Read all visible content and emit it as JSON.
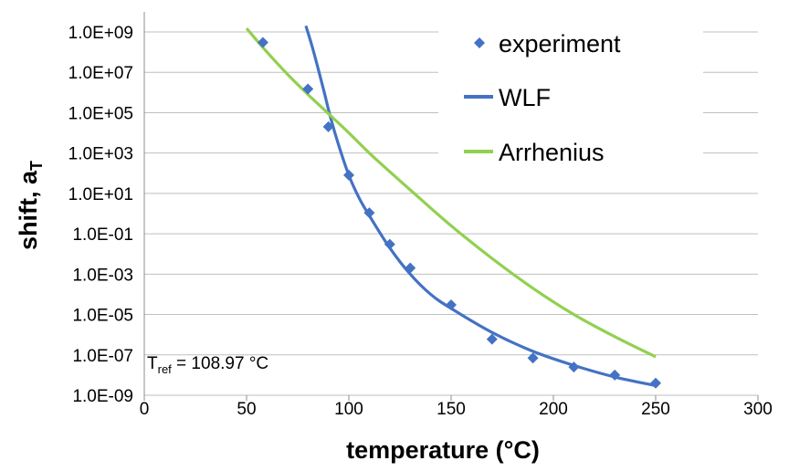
{
  "chart_data": {
    "type": "scatter",
    "title": "",
    "xlabel": "temperature (°C)",
    "ylabel": "shift, a",
    "ylabel_subscript": "T",
    "x_range": [
      0,
      300
    ],
    "x_ticks": [
      0,
      50,
      100,
      150,
      200,
      250,
      300
    ],
    "x_tick_labels": [
      "0",
      "50",
      "100",
      "150",
      "200",
      "250",
      "300"
    ],
    "y_scale": "log",
    "y_range": [
      1e-09,
      1000000000.0
    ],
    "y_ticks": [
      1e-09,
      1e-07,
      1e-05,
      0.001,
      0.1,
      10.0,
      1000.0,
      100000.0,
      10000000.0,
      1000000000.0
    ],
    "y_tick_labels": [
      "1.0E-09",
      "1.0E-07",
      "1.0E-05",
      "1.0E-03",
      "1.0E-01",
      "1.0E+01",
      "1.0E+03",
      "1.0E+05",
      "1.0E+07",
      "1.0E+09"
    ],
    "grid": {
      "horizontal": true,
      "vertical": false
    },
    "legend_position": "top-right",
    "annotation": {
      "prefix": "T",
      "subscript": "ref",
      "text": " = 108.97 °C"
    },
    "series": [
      {
        "name": "experiment",
        "kind": "markers",
        "color": "#4472C4",
        "x": [
          58,
          80,
          90,
          100,
          110,
          120,
          130,
          150,
          170,
          190,
          210,
          230,
          250
        ],
        "y": [
          300000000.0,
          1500000.0,
          20000.0,
          80,
          1.1,
          0.03,
          0.002,
          3e-05,
          6e-07,
          7e-08,
          2.5e-08,
          1e-08,
          4e-09
        ]
      },
      {
        "name": "WLF",
        "kind": "line",
        "color": "#4472C4",
        "x": [
          79,
          82,
          85,
          88,
          91,
          95,
          100,
          105,
          110,
          120,
          130,
          140,
          150,
          170,
          190,
          210,
          230,
          250
        ],
        "y": [
          2000000000.0,
          200000000.0,
          15000000.0,
          1000000.0,
          60000.0,
          2500.0,
          80,
          6,
          0.8,
          0.02,
          0.001,
          0.0001,
          2e-05,
          1.3e-06,
          1.5e-07,
          3e-08,
          8e-09,
          3e-09
        ]
      },
      {
        "name": "Arrhenius",
        "kind": "line",
        "color": "#92D050",
        "x": [
          50,
          60,
          70,
          80,
          90,
          100,
          110,
          120,
          130,
          150,
          170,
          190,
          210,
          230,
          250
        ],
        "y": [
          1500000000.0,
          100000000.0,
          8000000.0,
          800000.0,
          90000.0,
          10000.0,
          1000.0,
          120,
          15,
          0.25,
          0.006,
          0.0002,
          1e-05,
          8e-07,
          8e-08
        ]
      }
    ]
  }
}
